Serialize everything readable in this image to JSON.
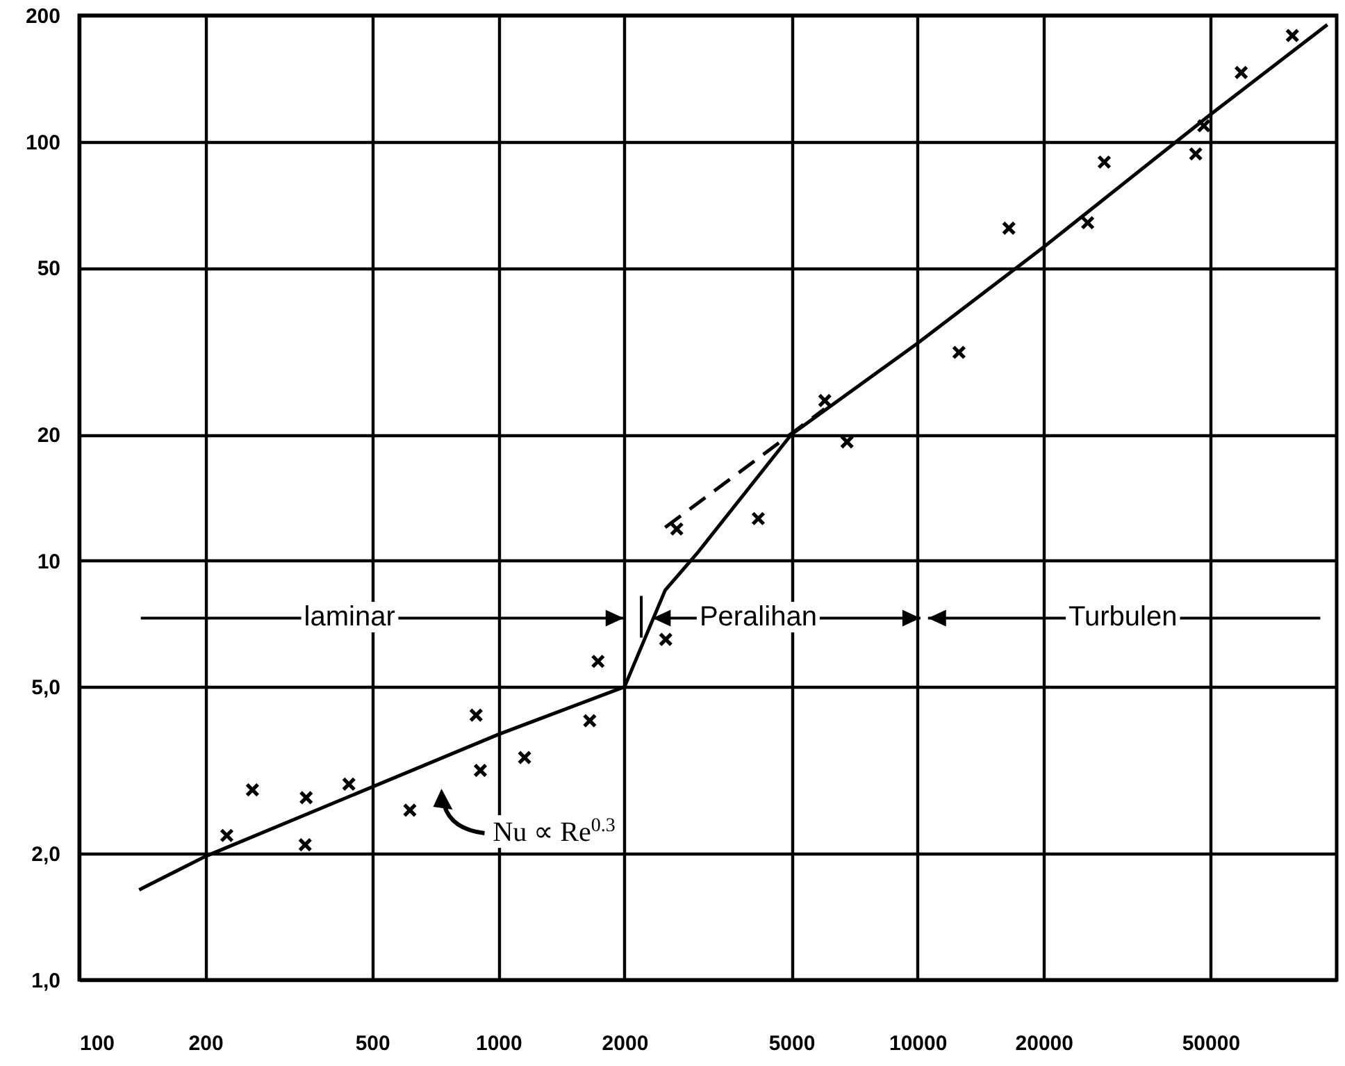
{
  "chart_data": {
    "type": "scatter",
    "log": "xy",
    "grid": true,
    "xlim": [
      100,
      100000
    ],
    "ylim": [
      1,
      200
    ],
    "xticks": [
      100,
      200,
      500,
      1000,
      2000,
      5000,
      10000,
      20000,
      50000
    ],
    "yticks": [
      {
        "value": 1,
        "label": "1,0"
      },
      {
        "value": 2,
        "label": "2,0"
      },
      {
        "value": 5,
        "label": "5,0"
      },
      10,
      20,
      50,
      100,
      200
    ],
    "series": [
      {
        "type": "line",
        "color": "#000000",
        "line_style": "solid",
        "x": [
          139,
          200,
          1000,
          2000,
          2500,
          3000,
          5000,
          10000,
          20000,
          50000,
          95000
        ],
        "values": [
          1.64,
          1.97,
          3.85,
          5.0,
          8.5,
          10.5,
          20,
          33,
          56,
          116,
          190
        ]
      },
      {
        "type": "line",
        "color": "#000000",
        "line_style": "dashed",
        "x": [
          2500,
          6000
        ],
        "values": [
          12,
          23
        ]
      },
      {
        "color": "#000000",
        "marker": "cross",
        "x": [
          225,
          259,
          348,
          346,
          440,
          615,
          885,
          906,
          1155,
          1652,
          1729,
          2508,
          2665,
          4170,
          6010,
          6790,
          12560,
          16520,
          25470,
          27900,
          46100,
          48200,
          59200,
          78400
        ],
        "values": [
          2.21,
          2.84,
          2.72,
          2.1,
          2.93,
          2.54,
          4.28,
          3.16,
          3.39,
          4.15,
          5.75,
          6.49,
          11.9,
          12.6,
          24.1,
          19.2,
          31.4,
          62.1,
          64.0,
          89.3,
          93.4,
          109,
          146,
          179
        ]
      }
    ],
    "annotations": [
      "laminar",
      "Peralihan",
      "Turbulen",
      "Nu ∝ Re$^{0.3}$"
    ]
  }
}
